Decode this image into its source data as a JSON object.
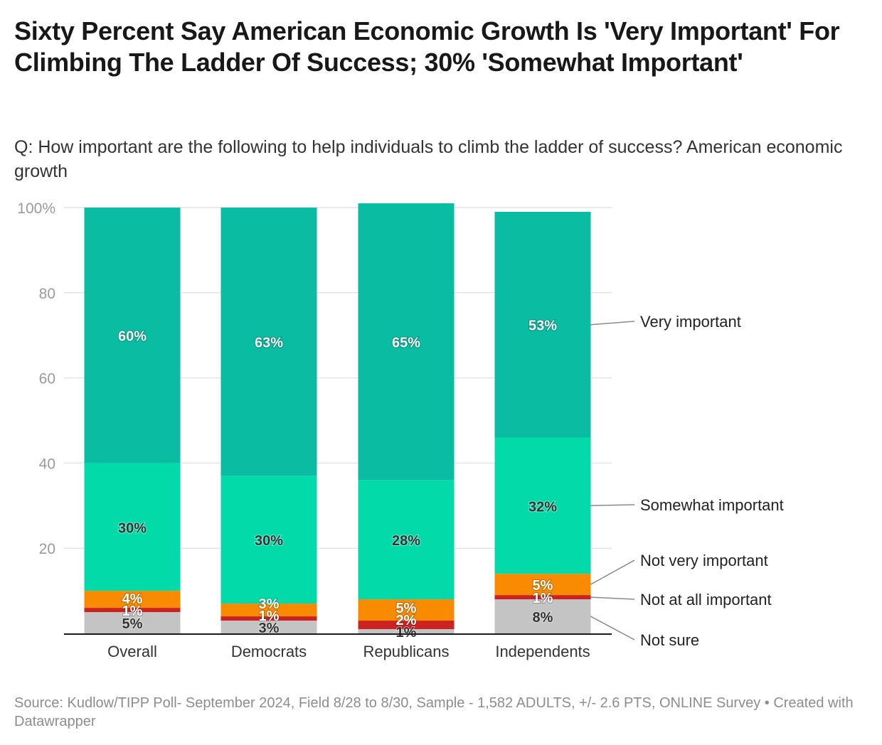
{
  "header": {
    "title": "Sixty Percent Say American Economic Growth Is 'Very Important' For Climbing The Ladder Of Success; 30% 'Somewhat Important'",
    "subtitle": "Q: How important are the following to help individuals to climb the ladder of success? American economic growth"
  },
  "footer": {
    "source": "Source: Kudlow/TIPP Poll- September 2024, Field 8/28 to 8/30, Sample - 1,582 ADULTS, +/- 2.6 PTS, ONLINE Survey",
    "separator": " • ",
    "credit": "Created with Datawrapper"
  },
  "chart_data": {
    "type": "bar",
    "stacked": true,
    "title": "Sixty Percent Say American Economic Growth Is 'Very Important' For Climbing The Ladder Of Success; 30% 'Somewhat Important'",
    "xlabel": "",
    "ylabel": "",
    "ylim": [
      0,
      100
    ],
    "yticks": [
      0,
      20,
      40,
      60,
      80,
      100
    ],
    "ytick_labels": [
      "",
      "20",
      "40",
      "60",
      "80",
      "100%"
    ],
    "grid": true,
    "legend": "right (direct labels on last bar)",
    "categories": [
      "Overall",
      "Democrats",
      "Republicans",
      "Independents"
    ],
    "series": [
      {
        "name": "Not sure",
        "color": "#c4c4c4",
        "label_color": "#333333",
        "values": [
          5,
          3,
          1,
          8
        ]
      },
      {
        "name": "Not at all important",
        "color": "#cc2222",
        "label_color": "#ffffff",
        "values": [
          1,
          1,
          2,
          1
        ]
      },
      {
        "name": "Not very important",
        "color": "#f88b00",
        "label_color": "#ffffff",
        "values": [
          4,
          3,
          5,
          5
        ]
      },
      {
        "name": "Somewhat important",
        "color": "#02dba9",
        "label_color": "#333333",
        "values": [
          30,
          30,
          28,
          32
        ]
      },
      {
        "name": "Very important",
        "color": "#09bca2",
        "label_color": "#ffffff",
        "values": [
          60,
          63,
          65,
          53
        ]
      }
    ]
  }
}
